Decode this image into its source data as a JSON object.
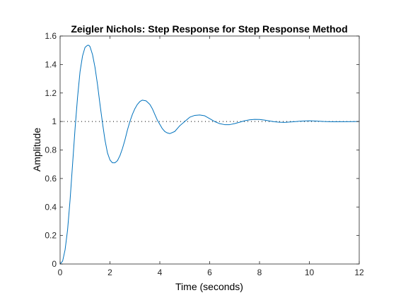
{
  "chart_data": {
    "type": "line",
    "title": "Zeigler Nichols: Step Response for Step Response Method",
    "xlabel": "Time (seconds)",
    "ylabel": "Amplitude",
    "xlim": [
      0,
      12
    ],
    "ylim": [
      0,
      1.6
    ],
    "xticks": [
      0,
      2,
      4,
      6,
      8,
      10,
      12
    ],
    "yticks": [
      0,
      0.2,
      0.4,
      0.6,
      0.8,
      1,
      1.2,
      1.4,
      1.6
    ],
    "xtick_labels": [
      "0",
      "2",
      "4",
      "6",
      "8",
      "10",
      "12"
    ],
    "ytick_labels": [
      "0",
      "0.2",
      "0.4",
      "0.6",
      "0.8",
      "1",
      "1.2",
      "1.4",
      "1.6"
    ],
    "grid": false,
    "legend": "none",
    "reference_line": {
      "y": 1,
      "style": "dotted",
      "color": "#000000"
    },
    "series": [
      {
        "color": "#0072BD",
        "x": [
          0,
          0.1,
          0.2,
          0.3,
          0.4,
          0.5,
          0.6,
          0.7,
          0.8,
          0.9,
          1.0,
          1.1,
          1.15,
          1.2,
          1.3,
          1.4,
          1.5,
          1.6,
          1.7,
          1.8,
          1.9,
          2.0,
          2.1,
          2.2,
          2.3,
          2.4,
          2.5,
          2.6,
          2.7,
          2.8,
          2.9,
          3.0,
          3.1,
          3.2,
          3.3,
          3.45,
          3.6,
          3.7,
          3.8,
          3.9,
          4.0,
          4.1,
          4.2,
          4.3,
          4.4,
          4.6,
          4.8,
          5.0,
          5.2,
          5.4,
          5.6,
          5.8,
          6.0,
          6.2,
          6.4,
          6.6,
          6.8,
          7.0,
          7.2,
          7.4,
          7.6,
          7.8,
          8.0,
          8.2,
          8.4,
          8.6,
          8.8,
          9.0,
          9.2,
          9.4,
          9.6,
          9.8,
          10.0,
          10.2,
          10.4,
          10.6,
          10.8,
          11.0,
          11.5,
          12.0
        ],
        "y": [
          0,
          0.02,
          0.1,
          0.24,
          0.45,
          0.7,
          0.95,
          1.17,
          1.35,
          1.46,
          1.52,
          1.535,
          1.535,
          1.525,
          1.47,
          1.38,
          1.26,
          1.12,
          0.99,
          0.87,
          0.78,
          0.73,
          0.71,
          0.71,
          0.725,
          0.76,
          0.81,
          0.87,
          0.94,
          1.0,
          1.05,
          1.09,
          1.12,
          1.14,
          1.15,
          1.145,
          1.12,
          1.09,
          1.05,
          1.01,
          0.98,
          0.95,
          0.93,
          0.92,
          0.915,
          0.93,
          0.97,
          1.0,
          1.03,
          1.043,
          1.046,
          1.04,
          1.02,
          1.0,
          0.985,
          0.978,
          0.978,
          0.985,
          0.995,
          1.005,
          1.012,
          1.015,
          1.014,
          1.01,
          1.004,
          0.998,
          0.995,
          0.994,
          0.996,
          0.999,
          1.002,
          1.004,
          1.005,
          1.004,
          1.002,
          1.0,
          0.999,
          0.998,
          0.999,
          1.0
        ]
      }
    ]
  }
}
